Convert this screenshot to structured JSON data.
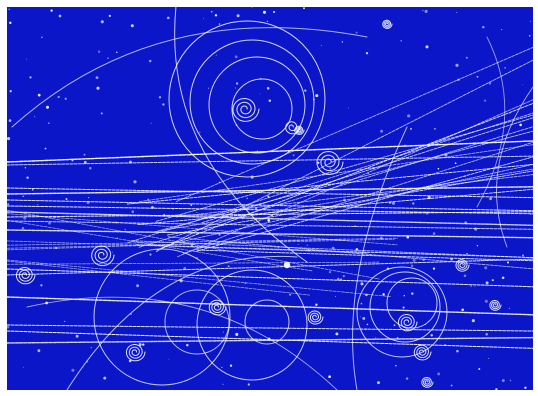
{
  "image": {
    "subject": "bubble-chamber-particle-tracks",
    "background_color": "#0b16c8",
    "track_color": "#f4f6ff",
    "border_color": "#ffffff"
  }
}
